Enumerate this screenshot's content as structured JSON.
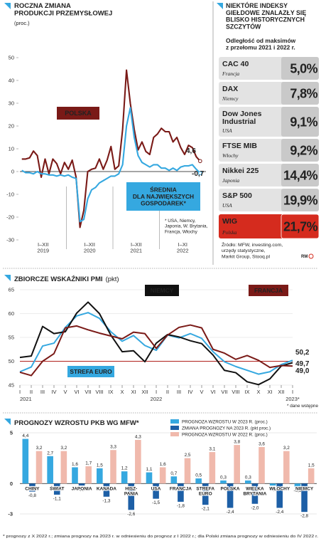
{
  "chart_data": [
    {
      "type": "line",
      "title": "ROCZNA ZMIANA\nPRODUKCJI PRZEMYSŁOWEJ",
      "subtitle": "(proc.)",
      "x_labels": [
        "I–XII\n2019",
        "I–XII\n2020",
        "I–XII\n2021",
        "I–XI\n2022"
      ],
      "ylim": [
        -30,
        50
      ],
      "yticks": [
        -30,
        -20,
        -10,
        0,
        10,
        20,
        30,
        40,
        50
      ],
      "grid": false,
      "series": [
        {
          "name": "POLSKA",
          "color": "#7a1a17",
          "end_label": "4,6",
          "values": [
            5.5,
            5.5,
            6.0,
            9.0,
            7.0,
            -2.5,
            5.5,
            -1.0,
            5.5,
            3.5,
            -1.0,
            4.0,
            1.0,
            5.0,
            -2.5,
            -24.5,
            -17.0,
            0.0,
            1.0,
            1.5,
            5.5,
            1.0,
            5.0,
            11.0,
            1.0,
            2.5,
            18.5,
            44.5,
            29.8,
            18.5,
            9.5,
            13.0,
            8.8,
            7.5,
            15.0,
            16.5,
            19.0,
            17.5,
            17.5,
            13.0,
            15.0,
            10.5,
            7.5,
            11.5,
            10.5,
            6.5,
            4.6
          ]
        },
        {
          "name": "ŚREDNIA\nDLA NAJWIĘKSZYCH\nGOSPODAREK*",
          "color": "#35a8e0",
          "end_label": "-0,7",
          "values": [
            0.5,
            -0.5,
            -0.5,
            -1.0,
            0.0,
            -1.0,
            -1.0,
            -1.5,
            -1.5,
            -2.0,
            -1.5,
            -2.0,
            -1.5,
            -2.5,
            -3.0,
            -22.0,
            -21.0,
            -12.0,
            -8.0,
            -7.0,
            -5.0,
            -4.0,
            -3.0,
            -2.0,
            -2.0,
            -1.0,
            3.0,
            20.0,
            28.0,
            15.0,
            7.0,
            4.0,
            3.0,
            2.0,
            3.0,
            3.0,
            1.5,
            1.5,
            0.5,
            1.5,
            0.5,
            2.0,
            2.5,
            2.5,
            3.0,
            1.0,
            -0.7
          ]
        }
      ],
      "note": "* USA, Niemcy,\nJaponia, W. Brytania,\nFrancja, Włochy"
    },
    {
      "type": "line",
      "title": "ZBIORCZE WSKAŹNIKI PMI",
      "subtitle": "(pkt)",
      "categories": [
        "I",
        "II",
        "III",
        "IV",
        "V",
        "VI",
        "VII",
        "VIII",
        "IX",
        "X",
        "XI",
        "XII",
        "I",
        "II",
        "III",
        "IV",
        "V",
        "VI",
        "VII",
        "VIII",
        "IX",
        "X",
        "XI",
        "XII",
        "I"
      ],
      "years": [
        "2021",
        "2022",
        "2023*"
      ],
      "note": "* dane wstępne",
      "ylim": [
        45,
        65
      ],
      "yticks": [
        45,
        50,
        55,
        60,
        65
      ],
      "grid": true,
      "reference_line": 50,
      "reference_color": "#b0201b",
      "series": [
        {
          "name": "STREFA EURO",
          "color": "#35a8e0",
          "end_label": "50,2",
          "values": [
            47.8,
            48.8,
            53.2,
            53.8,
            57.1,
            59.5,
            60.2,
            59.0,
            56.2,
            54.2,
            55.4,
            53.3,
            52.3,
            55.5,
            54.9,
            55.8,
            54.8,
            52.0,
            49.9,
            48.9,
            48.1,
            47.3,
            47.8,
            49.3,
            50.2
          ]
        },
        {
          "name": "NIEMCY",
          "color": "#111111",
          "end_label": "49,7",
          "values": [
            50.8,
            51.1,
            57.3,
            55.8,
            56.2,
            60.1,
            62.4,
            60.0,
            55.5,
            52.0,
            52.2,
            49.9,
            53.8,
            55.6,
            55.1,
            54.3,
            53.7,
            51.3,
            48.1,
            47.6,
            45.7,
            45.1,
            46.3,
            49.0,
            49.7
          ]
        },
        {
          "name": "FRANCJA",
          "color": "#7a1a17",
          "end_label": "49,0",
          "values": [
            47.7,
            47.0,
            50.0,
            51.6,
            57.0,
            57.4,
            56.6,
            55.9,
            55.3,
            54.7,
            56.1,
            55.8,
            52.7,
            55.5,
            57.1,
            57.6,
            57.0,
            52.5,
            51.7,
            50.4,
            51.2,
            50.2,
            48.7,
            49.1,
            49.0
          ]
        }
      ]
    },
    {
      "type": "bar",
      "title": "PROGNOZY WZROSTU PKB WG MFW*",
      "categories": [
        "CHINY",
        "ŚWIAT",
        "JAPONIA",
        "KANADA",
        "HISZ-\nPANIA",
        "USA",
        "FRANCJA",
        "STREFA\nEURO",
        "POLSKA",
        "WIELKA\nBRYTANIA",
        "WŁOCHY",
        "NIEMCY"
      ],
      "highlight": [
        false,
        true,
        false,
        false,
        false,
        false,
        false,
        true,
        true,
        false,
        false,
        false
      ],
      "highlight_color": "#c8102e",
      "ylim": [
        -3,
        5
      ],
      "yticks": [
        -3,
        0,
        5
      ],
      "grid": true,
      "series": [
        {
          "name": "PROGNOZA WZROSTU W 2023 R. (proc.)",
          "color": "#35a8e0",
          "values": [
            4.4,
            2.7,
            1.6,
            1.5,
            1.2,
            1.1,
            0.7,
            0.5,
            0.3,
            0.3,
            -0.2,
            -0.3
          ],
          "value_labels": [
            "4,4",
            "2,7",
            "1,6",
            "1,5",
            "1,2",
            "1,1",
            "0,7",
            "0,5",
            "0,3",
            "0,3",
            "-0,2",
            "-0,3"
          ]
        },
        {
          "name": "ZMIANA PROGNOZY NA 2023 R. (pkt proc.)",
          "color": "#1d5fa6",
          "values": [
            -0.8,
            -1.1,
            -0.2,
            -1.3,
            -2.6,
            -1.5,
            -1.8,
            -2.1,
            -2.4,
            -2.0,
            -2.4,
            -2.8
          ],
          "value_labels": [
            "-0,8",
            "-1,1",
            "-0,2",
            "-1,3",
            "-2,6",
            "-1,5",
            "-1,8",
            "-2,1",
            "-2,4",
            "-2,0",
            "-2,4",
            "-2,8"
          ]
        },
        {
          "name": "PROGNOZA WZROSTU W 2022 R. (proc.)",
          "color": "#f0b9ac",
          "values": [
            3.2,
            3.2,
            1.7,
            3.3,
            4.3,
            1.6,
            2.5,
            3.1,
            3.8,
            3.6,
            3.2,
            1.5
          ],
          "value_labels": [
            "3,2",
            "3,2",
            "1,7",
            "3,3",
            "4,3",
            "1,6",
            "2,5",
            "3,1",
            "3,8",
            "3,6",
            "3,2",
            "1,5"
          ]
        }
      ],
      "note": "* prognozy z X 2022 r.; zmiana prognozy na 2023 r. w odniesieniu do prognoz z I 2022 r.; dla Polski zmiana prognozy w odniesieniu do IV 2022 r."
    }
  ],
  "table": {
    "title": "NIEKTÓRE INDEKSY\nGIEŁDOWE ZNALAZŁY SIĘ\nBLISKO HISTORYCZNYCH\nSZCZYTÓW",
    "subtitle": "Odległość od maksimów\nz przełomu 2021 i 2022 r.",
    "highlight_color": "#d52b1e",
    "rows": [
      {
        "name": "CAC 40",
        "country": "Francja",
        "value": "5,0%"
      },
      {
        "name": "DAX",
        "country": "Niemcy",
        "value": "7,8%"
      },
      {
        "name": "Dow Jones\nIndustrial",
        "country": "USA",
        "value": "9,1%"
      },
      {
        "name": "FTSE MIB",
        "country": "Włochy",
        "value": "9,2%"
      },
      {
        "name": "Nikkei 225",
        "country": "Japonia",
        "value": "14,4%"
      },
      {
        "name": "S&P 500",
        "country": "USA",
        "value": "19,9%"
      },
      {
        "name": "WIG",
        "country": "Polska",
        "value": "21,7%",
        "highlight": true
      }
    ],
    "source": "Źródło: MFW, investing.com,\nurzędy statystyczne,\nMarkit Group, Stooq.pl",
    "logo": "RM"
  }
}
